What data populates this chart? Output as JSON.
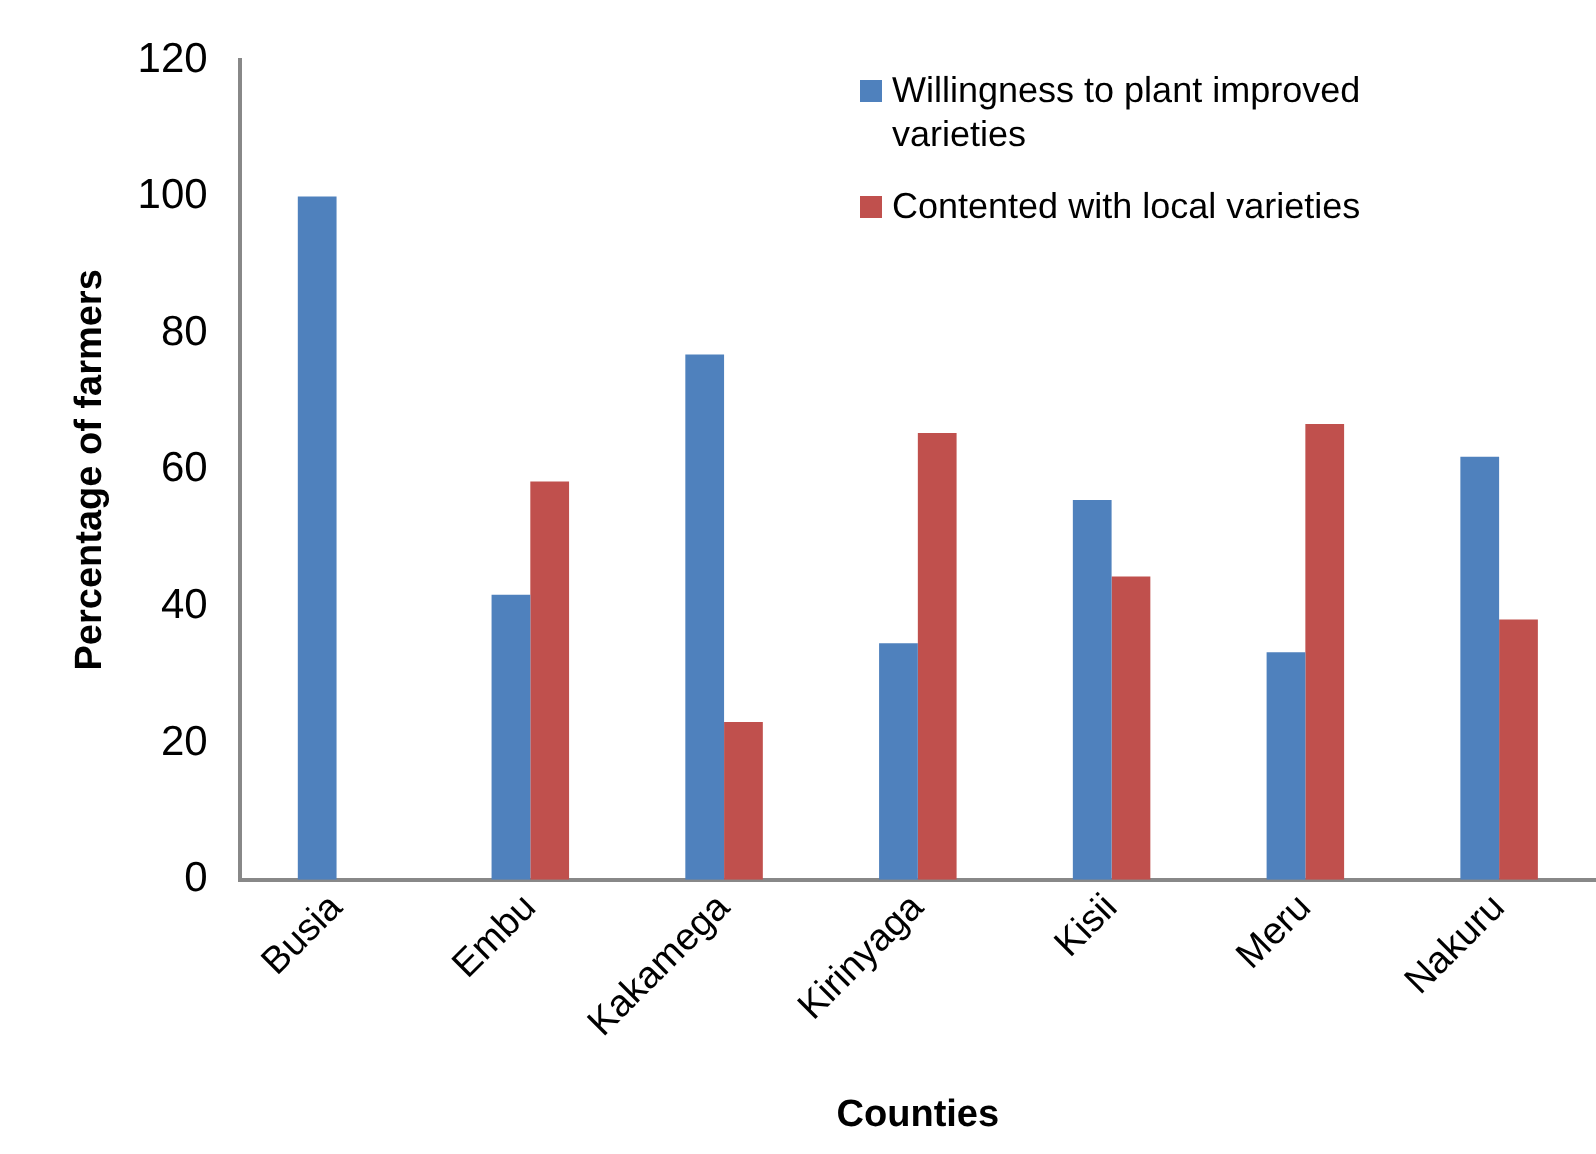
{
  "chart_data": {
    "type": "bar",
    "xlabel": "Counties",
    "ylabel": "Percentage of farmers",
    "categories": [
      "Busia",
      "Embu",
      "Kakamega",
      "Kirinyaga",
      "Kisii",
      "Meru",
      "Nakuru"
    ],
    "series": [
      {
        "name": "Willingness to plant improved varieties",
        "color": "#4f81bd",
        "values": [
          100,
          41.7,
          76.9,
          34.6,
          55.6,
          33.3,
          61.9
        ]
      },
      {
        "name": "Contented with local varieties",
        "color": "#c0504d",
        "values": [
          0,
          58.3,
          23.1,
          65.4,
          44.4,
          66.7,
          38.1
        ]
      }
    ],
    "ylim": [
      0,
      120
    ],
    "yticks": [
      0,
      20,
      40,
      60,
      80,
      100,
      120
    ],
    "grid": false,
    "legend": "top right"
  }
}
